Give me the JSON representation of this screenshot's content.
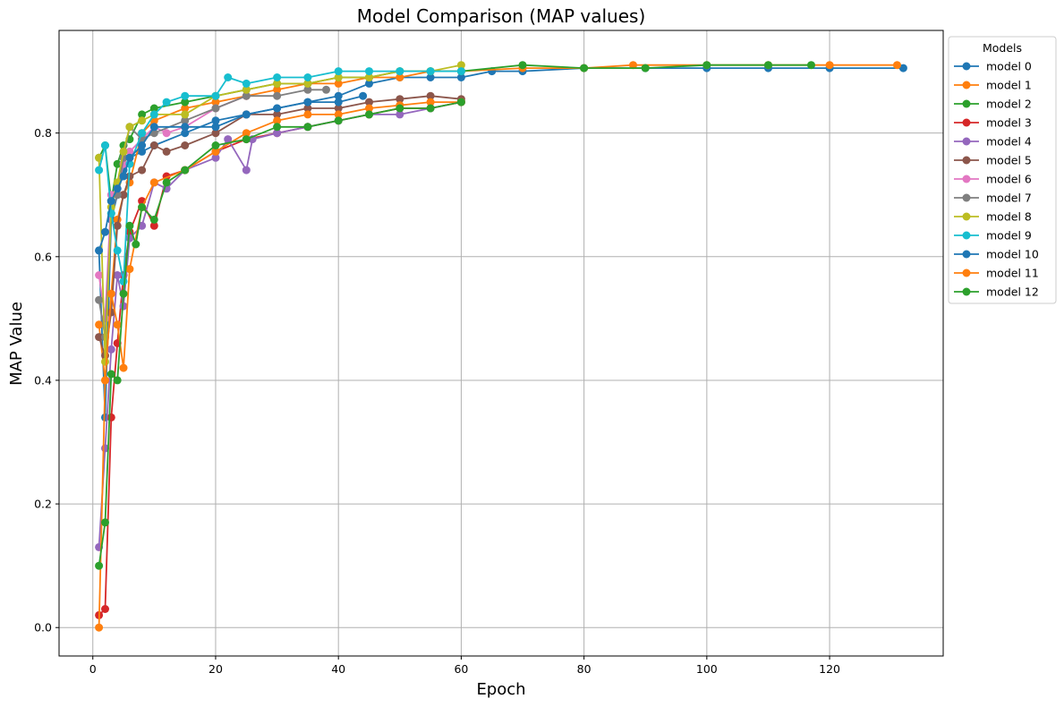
{
  "chart_data": {
    "type": "line",
    "title": "Model Comparison (MAP values)",
    "xlabel": "Epoch",
    "ylabel": "MAP Value",
    "xlim": [
      -5.5,
      138.5
    ],
    "ylim": [
      -0.046,
      0.966
    ],
    "xticks": [
      0,
      20,
      40,
      60,
      80,
      100,
      120
    ],
    "yticks": [
      0.0,
      0.2,
      0.4,
      0.6,
      0.8
    ],
    "ytick_labels": [
      "0.0",
      "0.2",
      "0.4",
      "0.6",
      "0.8"
    ],
    "grid": true,
    "legend": {
      "title": "Models",
      "position": "outside-right"
    },
    "series": [
      {
        "name": "model 0",
        "color": "#1f77b4",
        "points": [
          [
            1,
            0.61
          ],
          [
            2,
            0.34
          ],
          [
            3,
            0.66
          ],
          [
            4,
            0.7
          ],
          [
            5,
            0.74
          ],
          [
            6,
            0.76
          ],
          [
            8,
            0.77
          ],
          [
            10,
            0.78
          ],
          [
            15,
            0.8
          ],
          [
            20,
            0.82
          ],
          [
            25,
            0.83
          ],
          [
            30,
            0.84
          ],
          [
            35,
            0.85
          ],
          [
            40,
            0.86
          ],
          [
            45,
            0.88
          ],
          [
            50,
            0.89
          ],
          [
            55,
            0.89
          ],
          [
            60,
            0.89
          ],
          [
            65,
            0.9
          ],
          [
            70,
            0.9
          ],
          [
            80,
            0.905
          ],
          [
            90,
            0.905
          ],
          [
            100,
            0.905
          ],
          [
            110,
            0.905
          ],
          [
            120,
            0.905
          ],
          [
            132,
            0.905
          ]
        ]
      },
      {
        "name": "model 1",
        "color": "#ff7f0e",
        "points": [
          [
            1,
            0.49
          ],
          [
            2,
            0.4
          ],
          [
            3,
            0.54
          ],
          [
            4,
            0.66
          ],
          [
            5,
            0.7
          ],
          [
            6,
            0.72
          ],
          [
            8,
            0.8
          ],
          [
            10,
            0.82
          ],
          [
            15,
            0.84
          ],
          [
            20,
            0.85
          ],
          [
            25,
            0.86
          ],
          [
            30,
            0.87
          ],
          [
            35,
            0.88
          ],
          [
            40,
            0.88
          ],
          [
            45,
            0.89
          ],
          [
            50,
            0.89
          ],
          [
            55,
            0.9
          ],
          [
            60,
            0.9
          ],
          [
            70,
            0.905
          ],
          [
            80,
            0.905
          ],
          [
            88,
            0.91
          ],
          [
            100,
            0.91
          ],
          [
            110,
            0.91
          ],
          [
            120,
            0.91
          ],
          [
            131,
            0.91
          ]
        ]
      },
      {
        "name": "model 2",
        "color": "#2ca02c",
        "points": [
          [
            1,
            0.76
          ],
          [
            2,
            0.78
          ],
          [
            3,
            0.69
          ],
          [
            4,
            0.75
          ],
          [
            5,
            0.78
          ],
          [
            6,
            0.79
          ],
          [
            8,
            0.83
          ],
          [
            10,
            0.84
          ],
          [
            15,
            0.85
          ],
          [
            20,
            0.86
          ],
          [
            25,
            0.87
          ],
          [
            30,
            0.88
          ],
          [
            35,
            0.88
          ],
          [
            40,
            0.89
          ],
          [
            45,
            0.89
          ],
          [
            50,
            0.9
          ],
          [
            55,
            0.9
          ],
          [
            60,
            0.9
          ],
          [
            70,
            0.91
          ],
          [
            80,
            0.905
          ],
          [
            90,
            0.905
          ],
          [
            100,
            0.91
          ],
          [
            110,
            0.91
          ],
          [
            117,
            0.91
          ]
        ]
      },
      {
        "name": "model 3",
        "color": "#d62728",
        "points": [
          [
            1,
            0.02
          ],
          [
            2,
            0.03
          ],
          [
            3,
            0.34
          ],
          [
            4,
            0.46
          ],
          [
            5,
            0.57
          ],
          [
            6,
            0.64
          ],
          [
            8,
            0.69
          ],
          [
            10,
            0.65
          ],
          [
            12,
            0.73
          ],
          [
            15,
            0.74
          ],
          [
            20,
            0.77
          ],
          [
            25,
            0.79
          ],
          [
            30,
            0.8
          ],
          [
            35,
            0.81
          ],
          [
            40,
            0.82
          ],
          [
            45,
            0.83
          ],
          [
            50,
            0.84
          ],
          [
            55,
            0.84
          ],
          [
            60,
            0.85
          ]
        ]
      },
      {
        "name": "model 4",
        "color": "#9467bd",
        "points": [
          [
            1,
            0.13
          ],
          [
            2,
            0.29
          ],
          [
            3,
            0.45
          ],
          [
            4,
            0.57
          ],
          [
            5,
            0.52
          ],
          [
            6,
            0.63
          ],
          [
            8,
            0.65
          ],
          [
            10,
            0.72
          ],
          [
            12,
            0.71
          ],
          [
            15,
            0.74
          ],
          [
            20,
            0.76
          ],
          [
            22,
            0.79
          ],
          [
            25,
            0.74
          ],
          [
            26,
            0.79
          ],
          [
            30,
            0.8
          ],
          [
            35,
            0.81
          ],
          [
            40,
            0.82
          ],
          [
            45,
            0.83
          ],
          [
            50,
            0.83
          ],
          [
            55,
            0.84
          ],
          [
            60,
            0.85
          ]
        ]
      },
      {
        "name": "model 5",
        "color": "#8c564b",
        "points": [
          [
            1,
            0.47
          ],
          [
            2,
            0.44
          ],
          [
            3,
            0.51
          ],
          [
            4,
            0.65
          ],
          [
            5,
            0.7
          ],
          [
            6,
            0.73
          ],
          [
            8,
            0.74
          ],
          [
            10,
            0.78
          ],
          [
            12,
            0.77
          ],
          [
            15,
            0.78
          ],
          [
            20,
            0.8
          ],
          [
            25,
            0.83
          ],
          [
            30,
            0.83
          ],
          [
            35,
            0.84
          ],
          [
            40,
            0.84
          ],
          [
            45,
            0.85
          ],
          [
            50,
            0.855
          ],
          [
            55,
            0.86
          ],
          [
            60,
            0.855
          ]
        ]
      },
      {
        "name": "model 6",
        "color": "#e377c2",
        "points": [
          [
            1,
            0.57
          ],
          [
            2,
            0.5
          ],
          [
            3,
            0.7
          ],
          [
            4,
            0.71
          ],
          [
            5,
            0.75
          ],
          [
            6,
            0.77
          ],
          [
            8,
            0.79
          ],
          [
            10,
            0.81
          ],
          [
            12,
            0.8
          ],
          [
            15,
            0.81
          ],
          [
            20,
            0.84
          ],
          [
            25,
            0.86
          ]
        ]
      },
      {
        "name": "model 7",
        "color": "#7f7f7f",
        "points": [
          [
            1,
            0.53
          ],
          [
            2,
            0.47
          ],
          [
            3,
            0.67
          ],
          [
            4,
            0.7
          ],
          [
            5,
            0.76
          ],
          [
            6,
            0.81
          ],
          [
            8,
            0.79
          ],
          [
            10,
            0.8
          ],
          [
            15,
            0.82
          ],
          [
            20,
            0.84
          ],
          [
            25,
            0.86
          ],
          [
            30,
            0.86
          ],
          [
            35,
            0.87
          ],
          [
            38,
            0.87
          ]
        ]
      },
      {
        "name": "model 8",
        "color": "#bcbd22",
        "points": [
          [
            1,
            0.76
          ],
          [
            2,
            0.43
          ],
          [
            3,
            0.68
          ],
          [
            4,
            0.72
          ],
          [
            5,
            0.77
          ],
          [
            6,
            0.81
          ],
          [
            8,
            0.82
          ],
          [
            10,
            0.83
          ],
          [
            15,
            0.83
          ],
          [
            20,
            0.86
          ],
          [
            25,
            0.87
          ],
          [
            30,
            0.88
          ],
          [
            35,
            0.88
          ],
          [
            40,
            0.89
          ],
          [
            45,
            0.89
          ],
          [
            50,
            0.9
          ],
          [
            55,
            0.9
          ],
          [
            60,
            0.91
          ]
        ]
      },
      {
        "name": "model 9",
        "color": "#17becf",
        "points": [
          [
            1,
            0.74
          ],
          [
            2,
            0.78
          ],
          [
            3,
            0.67
          ],
          [
            4,
            0.61
          ],
          [
            5,
            0.56
          ],
          [
            6,
            0.75
          ],
          [
            8,
            0.8
          ],
          [
            10,
            0.83
          ],
          [
            12,
            0.85
          ],
          [
            15,
            0.86
          ],
          [
            20,
            0.86
          ],
          [
            22,
            0.89
          ],
          [
            25,
            0.88
          ],
          [
            30,
            0.89
          ],
          [
            35,
            0.89
          ],
          [
            40,
            0.9
          ],
          [
            45,
            0.9
          ],
          [
            50,
            0.9
          ],
          [
            55,
            0.9
          ],
          [
            60,
            0.9
          ]
        ]
      },
      {
        "name": "model 10",
        "color": "#1f77b4",
        "points": [
          [
            1,
            0.61
          ],
          [
            2,
            0.64
          ],
          [
            3,
            0.69
          ],
          [
            4,
            0.71
          ],
          [
            5,
            0.73
          ],
          [
            6,
            0.76
          ],
          [
            8,
            0.78
          ],
          [
            10,
            0.81
          ],
          [
            15,
            0.81
          ],
          [
            20,
            0.81
          ],
          [
            25,
            0.83
          ],
          [
            30,
            0.84
          ],
          [
            35,
            0.85
          ],
          [
            40,
            0.85
          ],
          [
            44,
            0.86
          ]
        ]
      },
      {
        "name": "model 11",
        "color": "#ff7f0e",
        "points": [
          [
            1,
            0.0
          ],
          [
            2,
            0.4
          ],
          [
            3,
            0.54
          ],
          [
            4,
            0.49
          ],
          [
            5,
            0.42
          ],
          [
            6,
            0.58
          ],
          [
            8,
            0.68
          ],
          [
            10,
            0.72
          ],
          [
            15,
            0.74
          ],
          [
            20,
            0.77
          ],
          [
            25,
            0.8
          ],
          [
            30,
            0.82
          ],
          [
            35,
            0.83
          ],
          [
            40,
            0.83
          ],
          [
            45,
            0.84
          ],
          [
            50,
            0.845
          ],
          [
            55,
            0.85
          ],
          [
            60,
            0.85
          ]
        ]
      },
      {
        "name": "model 12",
        "color": "#2ca02c",
        "points": [
          [
            1,
            0.1
          ],
          [
            2,
            0.17
          ],
          [
            3,
            0.41
          ],
          [
            4,
            0.4
          ],
          [
            5,
            0.54
          ],
          [
            6,
            0.65
          ],
          [
            7,
            0.62
          ],
          [
            8,
            0.68
          ],
          [
            10,
            0.66
          ],
          [
            12,
            0.72
          ],
          [
            15,
            0.74
          ],
          [
            20,
            0.78
          ],
          [
            25,
            0.79
          ],
          [
            30,
            0.81
          ],
          [
            35,
            0.81
          ],
          [
            40,
            0.82
          ],
          [
            45,
            0.83
          ],
          [
            50,
            0.84
          ],
          [
            55,
            0.84
          ],
          [
            60,
            0.85
          ]
        ]
      }
    ]
  }
}
